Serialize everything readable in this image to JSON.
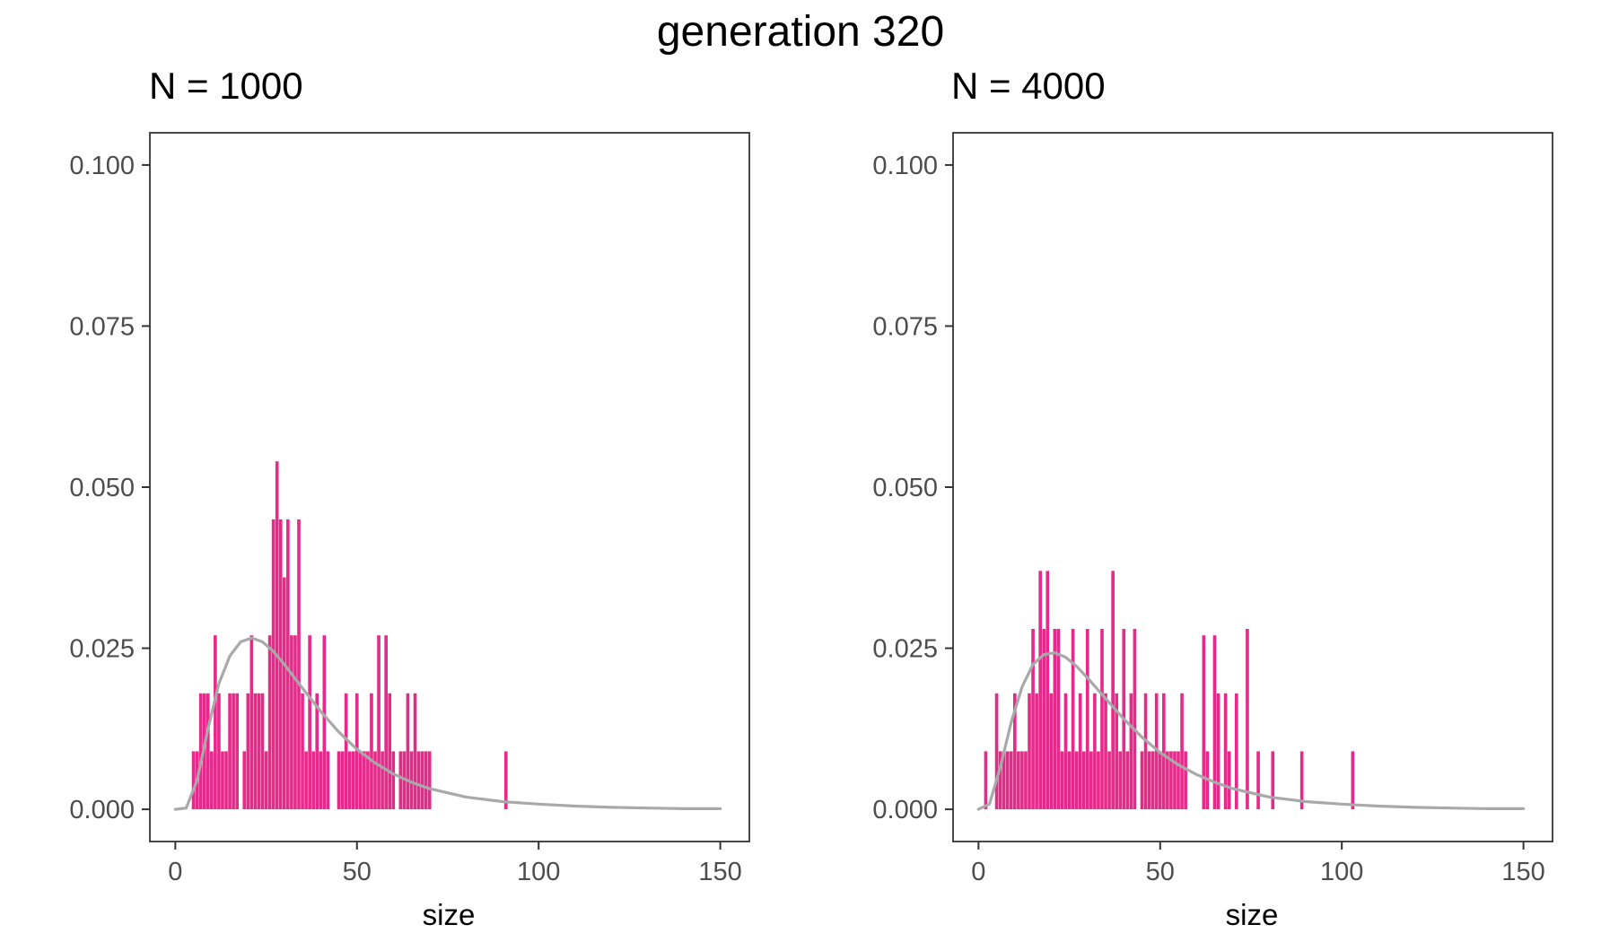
{
  "title": "generation 320",
  "chart_data": [
    {
      "type": "bar",
      "panel_title": "N = 1000",
      "xlabel": "size",
      "ylabel": "",
      "xlim": [
        -7,
        158
      ],
      "ylim": [
        -0.005,
        0.105
      ],
      "x_ticks": [
        0,
        50,
        100,
        150
      ],
      "y_ticks": [
        0.0,
        0.025,
        0.05,
        0.075,
        0.1
      ],
      "x_tick_labels": [
        "0",
        "50",
        "100",
        "150"
      ],
      "y_tick_labels": [
        "0.000",
        "0.025",
        "0.050",
        "0.075",
        "0.100"
      ],
      "bar_color": "#e7298a",
      "curve_color": "#a9a9a9",
      "series": [
        {
          "values": [
            {
              "x": 5,
              "y": 0.009
            },
            {
              "x": 6,
              "y": 0.009
            },
            {
              "x": 7,
              "y": 0.018
            },
            {
              "x": 8,
              "y": 0.018
            },
            {
              "x": 9,
              "y": 0.018
            },
            {
              "x": 10,
              "y": 0.009
            },
            {
              "x": 11,
              "y": 0.027
            },
            {
              "x": 12,
              "y": 0.018
            },
            {
              "x": 13,
              "y": 0.009
            },
            {
              "x": 14,
              "y": 0.009
            },
            {
              "x": 15,
              "y": 0.018
            },
            {
              "x": 16,
              "y": 0.018
            },
            {
              "x": 17,
              "y": 0.018
            },
            {
              "x": 19,
              "y": 0.009
            },
            {
              "x": 20,
              "y": 0.018
            },
            {
              "x": 21,
              "y": 0.027
            },
            {
              "x": 22,
              "y": 0.018
            },
            {
              "x": 23,
              "y": 0.018
            },
            {
              "x": 24,
              "y": 0.018
            },
            {
              "x": 25,
              "y": 0.009
            },
            {
              "x": 26,
              "y": 0.027
            },
            {
              "x": 27,
              "y": 0.045
            },
            {
              "x": 28,
              "y": 0.054
            },
            {
              "x": 29,
              "y": 0.045
            },
            {
              "x": 30,
              "y": 0.036
            },
            {
              "x": 31,
              "y": 0.045
            },
            {
              "x": 32,
              "y": 0.027
            },
            {
              "x": 33,
              "y": 0.027
            },
            {
              "x": 34,
              "y": 0.045
            },
            {
              "x": 35,
              "y": 0.018
            },
            {
              "x": 36,
              "y": 0.009
            },
            {
              "x": 37,
              "y": 0.027
            },
            {
              "x": 38,
              "y": 0.009
            },
            {
              "x": 39,
              "y": 0.018
            },
            {
              "x": 40,
              "y": 0.009
            },
            {
              "x": 41,
              "y": 0.027
            },
            {
              "x": 42,
              "y": 0.009
            },
            {
              "x": 45,
              "y": 0.009
            },
            {
              "x": 46,
              "y": 0.009
            },
            {
              "x": 47,
              "y": 0.018
            },
            {
              "x": 48,
              "y": 0.009
            },
            {
              "x": 49,
              "y": 0.009
            },
            {
              "x": 50,
              "y": 0.018
            },
            {
              "x": 51,
              "y": 0.009
            },
            {
              "x": 52,
              "y": 0.009
            },
            {
              "x": 53,
              "y": 0.009
            },
            {
              "x": 54,
              "y": 0.018
            },
            {
              "x": 55,
              "y": 0.009
            },
            {
              "x": 56,
              "y": 0.027
            },
            {
              "x": 57,
              "y": 0.009
            },
            {
              "x": 58,
              "y": 0.027
            },
            {
              "x": 59,
              "y": 0.018
            },
            {
              "x": 60,
              "y": 0.009
            },
            {
              "x": 62,
              "y": 0.009
            },
            {
              "x": 63,
              "y": 0.009
            },
            {
              "x": 64,
              "y": 0.018
            },
            {
              "x": 65,
              "y": 0.009
            },
            {
              "x": 66,
              "y": 0.018
            },
            {
              "x": 67,
              "y": 0.009
            },
            {
              "x": 68,
              "y": 0.009
            },
            {
              "x": 69,
              "y": 0.009
            },
            {
              "x": 70,
              "y": 0.009
            },
            {
              "x": 91,
              "y": 0.009
            }
          ]
        }
      ],
      "curve": [
        {
          "x": 0,
          "y": 0.0
        },
        {
          "x": 3,
          "y": 0.0002
        },
        {
          "x": 6,
          "y": 0.0045
        },
        {
          "x": 9,
          "y": 0.0125
        },
        {
          "x": 12,
          "y": 0.0195
        },
        {
          "x": 15,
          "y": 0.0238
        },
        {
          "x": 18,
          "y": 0.026
        },
        {
          "x": 21,
          "y": 0.0266
        },
        {
          "x": 24,
          "y": 0.026
        },
        {
          "x": 27,
          "y": 0.0245
        },
        {
          "x": 30,
          "y": 0.0225
        },
        {
          "x": 35,
          "y": 0.0188
        },
        {
          "x": 40,
          "y": 0.0152
        },
        {
          "x": 45,
          "y": 0.012
        },
        {
          "x": 50,
          "y": 0.0093
        },
        {
          "x": 55,
          "y": 0.0072
        },
        {
          "x": 60,
          "y": 0.0055
        },
        {
          "x": 65,
          "y": 0.0042
        },
        {
          "x": 70,
          "y": 0.0032
        },
        {
          "x": 80,
          "y": 0.0019
        },
        {
          "x": 90,
          "y": 0.0012
        },
        {
          "x": 100,
          "y": 0.0008
        },
        {
          "x": 110,
          "y": 0.0005
        },
        {
          "x": 120,
          "y": 0.0003
        },
        {
          "x": 130,
          "y": 0.0002
        },
        {
          "x": 140,
          "y": 0.0001
        },
        {
          "x": 150,
          "y": 0.0001
        }
      ]
    },
    {
      "type": "bar",
      "panel_title": "N = 4000",
      "xlabel": "size",
      "ylabel": "",
      "xlim": [
        -7,
        158
      ],
      "ylim": [
        -0.005,
        0.105
      ],
      "x_ticks": [
        0,
        50,
        100,
        150
      ],
      "y_ticks": [
        0.0,
        0.025,
        0.05,
        0.075,
        0.1
      ],
      "x_tick_labels": [
        "0",
        "50",
        "100",
        "150"
      ],
      "y_tick_labels": [
        "0.000",
        "0.025",
        "0.050",
        "0.075",
        "0.100"
      ],
      "bar_color": "#e7298a",
      "curve_color": "#a9a9a9",
      "series": [
        {
          "values": [
            {
              "x": 2,
              "y": 0.009
            },
            {
              "x": 5,
              "y": 0.018
            },
            {
              "x": 6,
              "y": 0.009
            },
            {
              "x": 7,
              "y": 0.009
            },
            {
              "x": 8,
              "y": 0.009
            },
            {
              "x": 9,
              "y": 0.009
            },
            {
              "x": 10,
              "y": 0.018
            },
            {
              "x": 11,
              "y": 0.009
            },
            {
              "x": 12,
              "y": 0.009
            },
            {
              "x": 13,
              "y": 0.009
            },
            {
              "x": 14,
              "y": 0.018
            },
            {
              "x": 15,
              "y": 0.028
            },
            {
              "x": 16,
              "y": 0.018
            },
            {
              "x": 17,
              "y": 0.037
            },
            {
              "x": 18,
              "y": 0.028
            },
            {
              "x": 19,
              "y": 0.037
            },
            {
              "x": 20,
              "y": 0.018
            },
            {
              "x": 21,
              "y": 0.028
            },
            {
              "x": 22,
              "y": 0.028
            },
            {
              "x": 23,
              "y": 0.009
            },
            {
              "x": 24,
              "y": 0.018
            },
            {
              "x": 25,
              "y": 0.009
            },
            {
              "x": 26,
              "y": 0.028
            },
            {
              "x": 27,
              "y": 0.009
            },
            {
              "x": 28,
              "y": 0.018
            },
            {
              "x": 29,
              "y": 0.009
            },
            {
              "x": 30,
              "y": 0.028
            },
            {
              "x": 31,
              "y": 0.009
            },
            {
              "x": 32,
              "y": 0.018
            },
            {
              "x": 33,
              "y": 0.009
            },
            {
              "x": 34,
              "y": 0.028
            },
            {
              "x": 35,
              "y": 0.018
            },
            {
              "x": 36,
              "y": 0.009
            },
            {
              "x": 37,
              "y": 0.037
            },
            {
              "x": 38,
              "y": 0.018
            },
            {
              "x": 39,
              "y": 0.009
            },
            {
              "x": 40,
              "y": 0.028
            },
            {
              "x": 41,
              "y": 0.009
            },
            {
              "x": 42,
              "y": 0.018
            },
            {
              "x": 43,
              "y": 0.028
            },
            {
              "x": 45,
              "y": 0.009
            },
            {
              "x": 46,
              "y": 0.018
            },
            {
              "x": 47,
              "y": 0.009
            },
            {
              "x": 48,
              "y": 0.009
            },
            {
              "x": 49,
              "y": 0.018
            },
            {
              "x": 50,
              "y": 0.009
            },
            {
              "x": 51,
              "y": 0.018
            },
            {
              "x": 52,
              "y": 0.009
            },
            {
              "x": 53,
              "y": 0.009
            },
            {
              "x": 54,
              "y": 0.009
            },
            {
              "x": 55,
              "y": 0.009
            },
            {
              "x": 56,
              "y": 0.018
            },
            {
              "x": 57,
              "y": 0.009
            },
            {
              "x": 62,
              "y": 0.027
            },
            {
              "x": 63,
              "y": 0.009
            },
            {
              "x": 65,
              "y": 0.027
            },
            {
              "x": 66,
              "y": 0.018
            },
            {
              "x": 68,
              "y": 0.018
            },
            {
              "x": 69,
              "y": 0.009
            },
            {
              "x": 71,
              "y": 0.018
            },
            {
              "x": 74,
              "y": 0.028
            },
            {
              "x": 77,
              "y": 0.009
            },
            {
              "x": 81,
              "y": 0.009
            },
            {
              "x": 89,
              "y": 0.009
            },
            {
              "x": 103,
              "y": 0.009
            }
          ]
        }
      ],
      "curve": [
        {
          "x": 0,
          "y": 0.0
        },
        {
          "x": 3,
          "y": 0.0008
        },
        {
          "x": 6,
          "y": 0.0065
        },
        {
          "x": 9,
          "y": 0.0135
        },
        {
          "x": 12,
          "y": 0.019
        },
        {
          "x": 15,
          "y": 0.0225
        },
        {
          "x": 18,
          "y": 0.024
        },
        {
          "x": 21,
          "y": 0.0243
        },
        {
          "x": 24,
          "y": 0.0236
        },
        {
          "x": 27,
          "y": 0.0222
        },
        {
          "x": 30,
          "y": 0.0204
        },
        {
          "x": 35,
          "y": 0.0172
        },
        {
          "x": 40,
          "y": 0.014
        },
        {
          "x": 45,
          "y": 0.0112
        },
        {
          "x": 50,
          "y": 0.0088
        },
        {
          "x": 55,
          "y": 0.0069
        },
        {
          "x": 60,
          "y": 0.0054
        },
        {
          "x": 65,
          "y": 0.0042
        },
        {
          "x": 70,
          "y": 0.0032
        },
        {
          "x": 80,
          "y": 0.0019
        },
        {
          "x": 90,
          "y": 0.0012
        },
        {
          "x": 100,
          "y": 0.0008
        },
        {
          "x": 110,
          "y": 0.0005
        },
        {
          "x": 120,
          "y": 0.0003
        },
        {
          "x": 130,
          "y": 0.0002
        },
        {
          "x": 140,
          "y": 0.0001
        },
        {
          "x": 150,
          "y": 0.0001
        }
      ]
    }
  ]
}
